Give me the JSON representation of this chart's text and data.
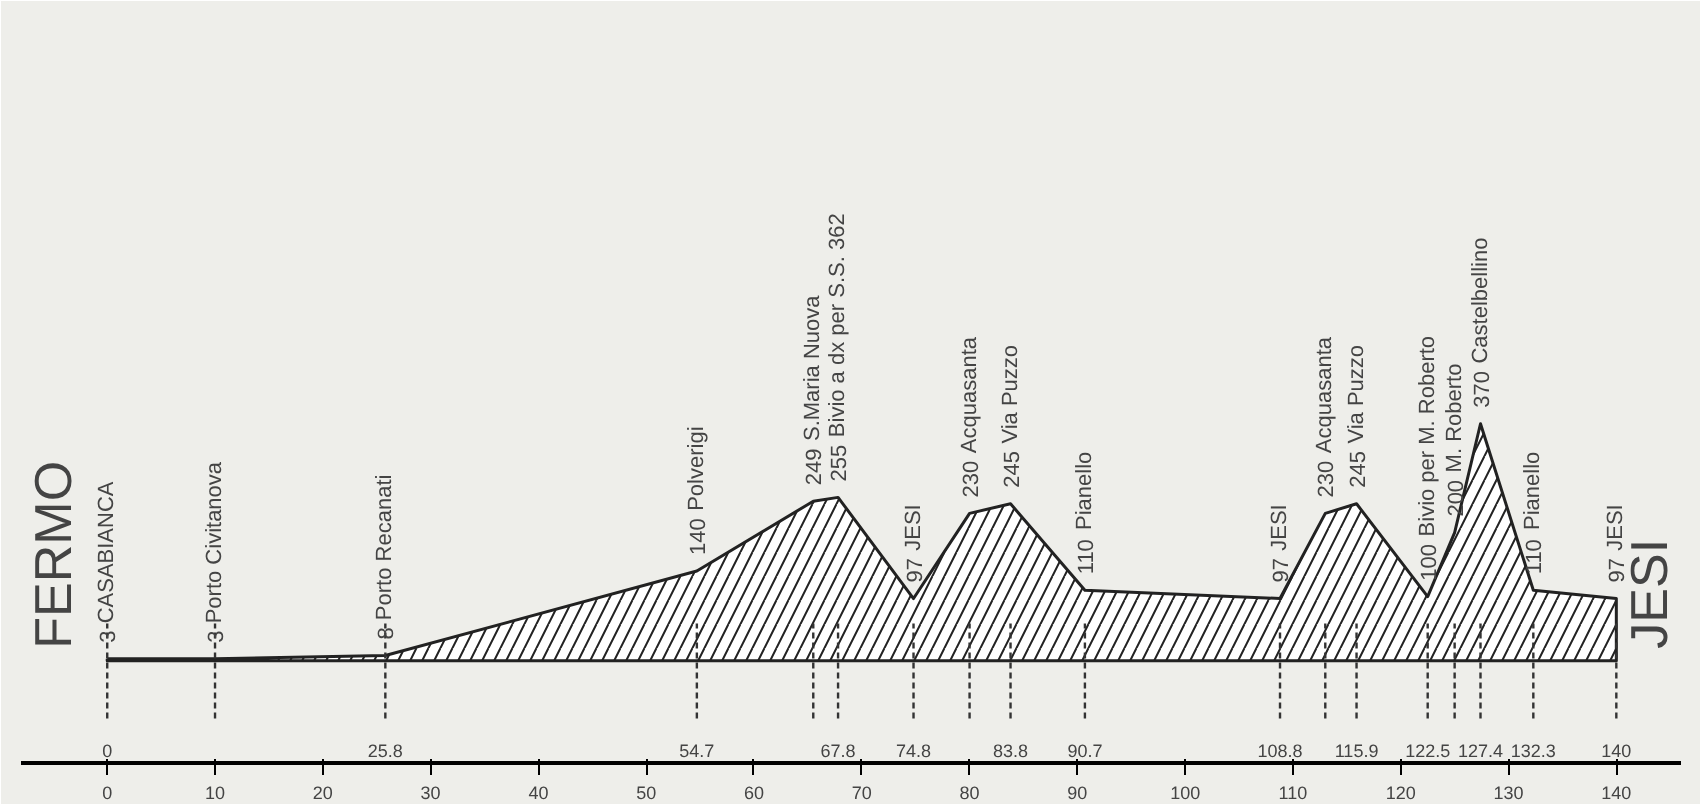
{
  "chart_data": {
    "type": "area",
    "x": [
      0,
      10,
      25.8,
      54.7,
      65.5,
      67.8,
      74.8,
      80,
      83.8,
      90.7,
      108.8,
      113,
      115.9,
      122.5,
      125,
      127.4,
      132.3,
      140
    ],
    "series": [
      {
        "color": "#222222",
        "values": [
          3,
          3,
          8,
          140,
          249,
          255,
          97,
          230,
          245,
          110,
          97,
          230,
          245,
          100,
          200,
          370,
          110,
          97
        ],
        "value_labels": [
          "3",
          "3",
          "8",
          "140",
          "249",
          "255",
          "97",
          "230",
          "245",
          "110",
          "97",
          "230",
          "245",
          "100",
          "200",
          "370",
          "110",
          "97"
        ]
      }
    ],
    "xlim": [
      -8,
      146
    ],
    "xticks": [
      0,
      10,
      20,
      30,
      40,
      50,
      60,
      70,
      80,
      90,
      100,
      110,
      120,
      130,
      140
    ],
    "tick_labels": "x",
    "grid": false,
    "ref_lines": [
      {
        "axis": "x",
        "value": 0,
        "label": "0"
      },
      {
        "axis": "x",
        "value": 10,
        "label": null
      },
      {
        "axis": "x",
        "value": 25.8,
        "label": "25.8"
      },
      {
        "axis": "x",
        "value": 54.7,
        "label": "54.7"
      },
      {
        "axis": "x",
        "value": 65.5,
        "label": null
      },
      {
        "axis": "x",
        "value": 67.8,
        "label": "67.8"
      },
      {
        "axis": "x",
        "value": 74.8,
        "label": "74.8"
      },
      {
        "axis": "x",
        "value": 80,
        "label": null
      },
      {
        "axis": "x",
        "value": 83.8,
        "label": "83.8"
      },
      {
        "axis": "x",
        "value": 90.7,
        "label": "90.7"
      },
      {
        "axis": "x",
        "value": 108.8,
        "label": "108.8"
      },
      {
        "axis": "x",
        "value": 113,
        "label": null
      },
      {
        "axis": "x",
        "value": 115.9,
        "label": "115.9"
      },
      {
        "axis": "x",
        "value": 122.5,
        "label": "122.5"
      },
      {
        "axis": "x",
        "value": 125,
        "label": null
      },
      {
        "axis": "x",
        "value": 127.4,
        "label": "127.4"
      },
      {
        "axis": "x",
        "value": 132.3,
        "label": "132.3"
      },
      {
        "axis": "x",
        "value": 140,
        "label": "140"
      }
    ],
    "annotations": [
      "FERMO",
      "JESI",
      {
        "text": "CASABIANCA",
        "x": 0,
        "y": 3
      },
      {
        "text": "Porto Civitanova",
        "x": 10,
        "y": 3
      },
      {
        "text": "Porto Recanati",
        "x": 25.8,
        "y": 8
      },
      {
        "text": "Polverigi",
        "x": 54.7,
        "y": 140
      },
      {
        "text": "S.Maria Nuova",
        "x": 65.5,
        "y": 249
      },
      {
        "text": "Bivio a dx per S.S. 362",
        "x": 67.8,
        "y": 255
      },
      {
        "text": "JESI",
        "x": 74.8,
        "y": 97
      },
      {
        "text": "Acquasanta",
        "x": 80,
        "y": 230
      },
      {
        "text": "Via Puzzo",
        "x": 83.8,
        "y": 245
      },
      {
        "text": "Pianello",
        "x": 90.7,
        "y": 110
      },
      {
        "text": "JESI",
        "x": 108.8,
        "y": 97
      },
      {
        "text": "Acquasanta",
        "x": 113,
        "y": 230
      },
      {
        "text": "Via Puzzo",
        "x": 115.9,
        "y": 245
      },
      {
        "text": "Bivio per M. Roberto",
        "x": 122.5,
        "y": 100
      },
      {
        "text": "M. Roberto",
        "x": 125,
        "y": 200
      },
      {
        "text": "Castelbellino",
        "x": 127.4,
        "y": 370
      },
      {
        "text": "Pianello",
        "x": 132.3,
        "y": 110
      },
      {
        "text": "JESI",
        "x": 140,
        "y": 97
      }
    ]
  }
}
